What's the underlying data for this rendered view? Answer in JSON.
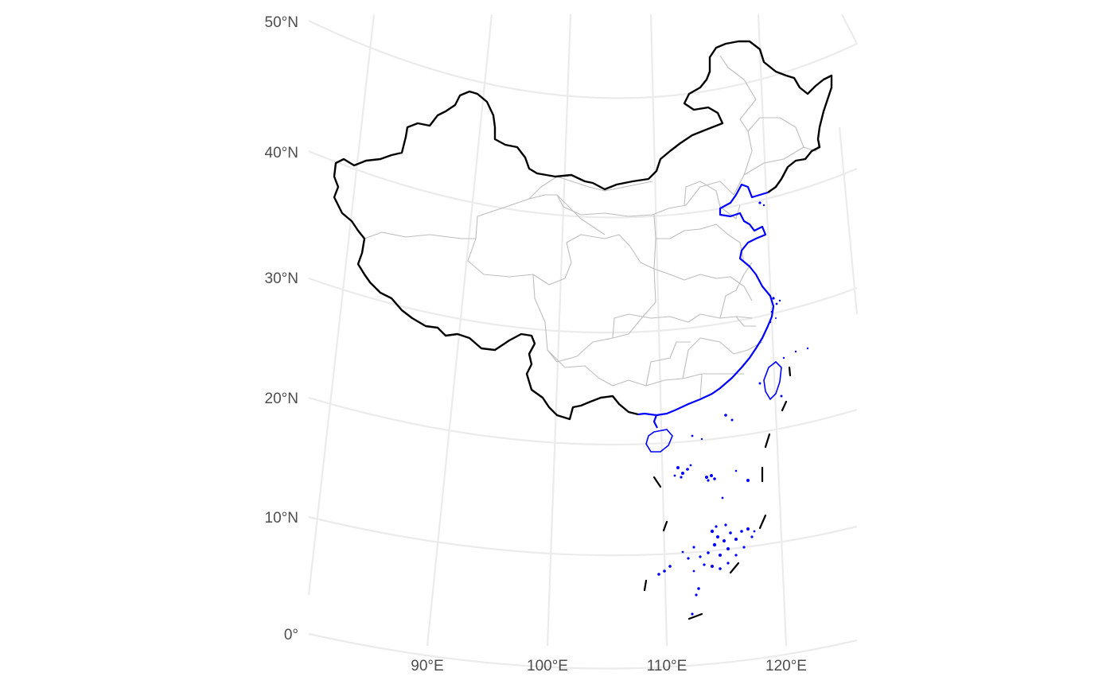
{
  "map": {
    "projection": "conic",
    "latitude_labels": [
      "50°N",
      "40°N",
      "30°N",
      "20°N",
      "10°N",
      "0°"
    ],
    "longitude_labels": [
      "90°E",
      "100°E",
      "110°E",
      "120°E"
    ],
    "colors": {
      "background": "#ffffff",
      "graticule": "#ebebeb",
      "country_border": "#000000",
      "province_borders": "#bdbdbd",
      "coastline": "#0000ff",
      "nine_dash_line": "#000000",
      "tick_labels": "#4d4d4d"
    },
    "layers": [
      "graticule",
      "province-borders",
      "country-border",
      "coastline",
      "south-china-sea-islands",
      "nine-dash-line"
    ]
  }
}
